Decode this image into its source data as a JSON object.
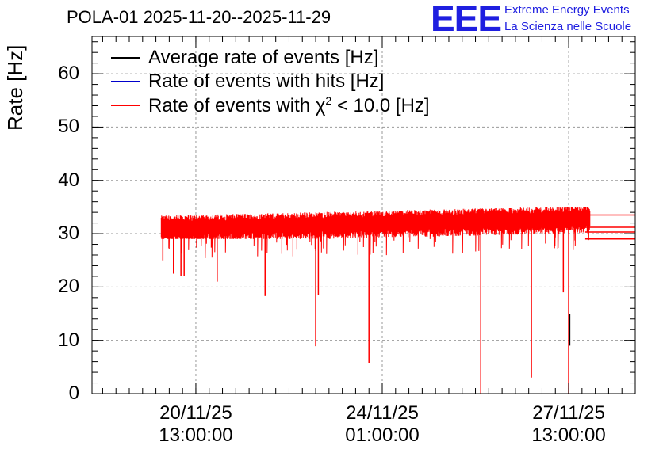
{
  "title": "POLA-01 2025-11-20--2025-11-29",
  "logo": {
    "mark": "EEE",
    "line1": "Extreme Energy Events",
    "line2": "La Scienza nelle Scuole",
    "color": "#1f1fe0"
  },
  "chart_data": {
    "type": "line",
    "title": "POLA-01 2025-11-20--2025-11-29",
    "xlabel": "",
    "ylabel": "Rate [Hz]",
    "ylim": [
      0,
      67
    ],
    "yticks": [
      0,
      10,
      20,
      30,
      40,
      50,
      60
    ],
    "xlim_days": [
      -1.95,
      8.25
    ],
    "xticks": [
      {
        "day": 0.0,
        "date": "20/11/25",
        "time": "13:00:00"
      },
      {
        "day": 3.5,
        "date": "24/11/25",
        "time": "01:00:00"
      },
      {
        "day": 7.0,
        "date": "27/11/25",
        "time": "13:00:00"
      }
    ],
    "x_origin": "2025-11-20 13:00:00",
    "grid": true,
    "legend_position": "top-left",
    "legend": [
      {
        "label": "Average rate of events [Hz]",
        "color": "#000000"
      },
      {
        "label": "Rate of events with hits [Hz]",
        "color": "#0000cc"
      },
      {
        "label_prefix": "Rate of events with ",
        "chi": "χ",
        "sup": "2",
        "label_suffix": " < 10.0 [Hz]",
        "color": "#ff0000"
      }
    ],
    "series": [
      {
        "name": "Rate of events with chi2 < 10.0 [Hz]",
        "color": "#ff0000",
        "x_start_day": -0.65,
        "x_end_day": 7.4,
        "baseline_start": 31.0,
        "baseline_end": 32.8,
        "band_min": 29.0,
        "band_max": 35.0,
        "dips": [
          {
            "day": -0.62,
            "value": 25.0
          },
          {
            "day": -0.42,
            "value": 22.5
          },
          {
            "day": -0.28,
            "value": 22.0
          },
          {
            "day": -0.22,
            "value": 22.0
          },
          {
            "day": 0.4,
            "value": 21.0
          },
          {
            "day": 1.3,
            "value": 18.3
          },
          {
            "day": 2.25,
            "value": 8.9
          },
          {
            "day": 2.3,
            "value": 18.5
          },
          {
            "day": 3.25,
            "value": 5.8
          },
          {
            "day": 5.35,
            "value": 0.0
          },
          {
            "day": 6.3,
            "value": 3.0
          },
          {
            "day": 6.9,
            "value": 19.0
          },
          {
            "day": 7.0,
            "value": 0.0
          }
        ],
        "tail_levels": [
          33.5,
          31.2,
          30.3,
          29.0
        ]
      }
    ]
  }
}
